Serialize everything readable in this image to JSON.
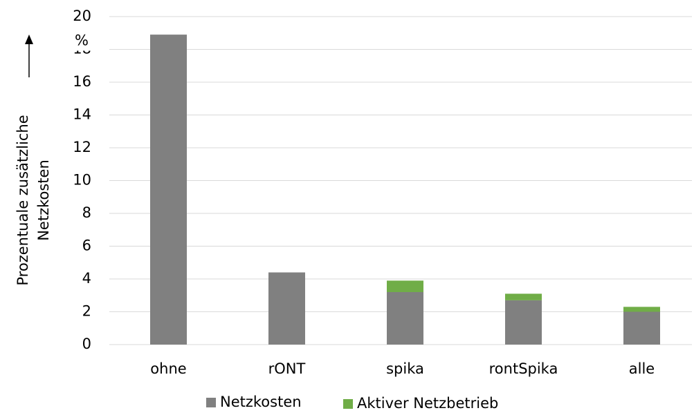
{
  "chart_data": {
    "type": "stacked_bar",
    "ylabel": [
      "Prozentuale zusätzliche",
      "Netzkosten"
    ],
    "unit": "%",
    "categories": [
      "ohne",
      "rONT",
      "spika",
      "rontSpika",
      "alle"
    ],
    "series": [
      {
        "name": "Netzkosten",
        "color": "#808080",
        "values": [
          18.9,
          4.4,
          3.2,
          2.7,
          2.0
        ]
      },
      {
        "name": "Aktiver Netzbetrieb",
        "color": "#70ad47",
        "values": [
          0,
          0,
          0.7,
          0.4,
          0.3
        ]
      }
    ],
    "ylim": [
      0,
      20
    ],
    "yticks": [
      0,
      2,
      4,
      6,
      8,
      10,
      12,
      14,
      16,
      18,
      20
    ],
    "grid": true,
    "legend": "bottom"
  }
}
